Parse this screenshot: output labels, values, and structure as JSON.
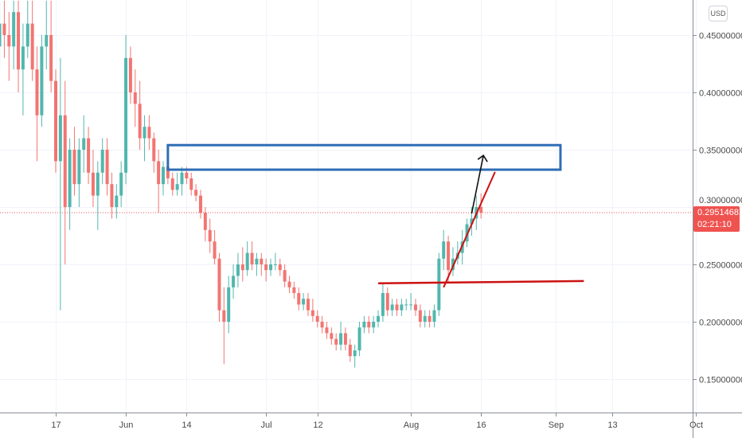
{
  "currency_button": "USD",
  "last_price": {
    "value": "0.29514681",
    "countdown": "02:21:10",
    "color": "#ef5350"
  },
  "chart_data": {
    "type": "candlestick",
    "title": "",
    "ylim": [
      0.12,
      0.48
    ],
    "y_ticks": [
      "0.15000000",
      "0.20000000",
      "0.25000000",
      "0.30000000",
      "0.35000000",
      "0.40000000",
      "0.45000000"
    ],
    "x_ticks": [
      {
        "date": "05-17",
        "label": "17"
      },
      {
        "date": "06-01",
        "label": "Jun"
      },
      {
        "date": "06-14",
        "label": "14"
      },
      {
        "date": "07-01",
        "label": "Jul"
      },
      {
        "date": "07-12",
        "label": "12"
      },
      {
        "date": "08-01",
        "label": "Aug"
      },
      {
        "date": "08-16",
        "label": "16"
      },
      {
        "date": "09-01",
        "label": "Sep"
      },
      {
        "date": "09-13",
        "label": "13"
      },
      {
        "date": "10-01",
        "label": "Oct"
      }
    ],
    "grid": true,
    "colors": {
      "up": "#26a69a",
      "down": "#ef5350",
      "zone": "#2e6db4",
      "level": "#cc1111",
      "arrow": "#111111"
    },
    "candles_start": "05-05",
    "ohlc": [
      [
        0.44,
        0.48,
        0.42,
        0.46
      ],
      [
        0.46,
        0.48,
        0.43,
        0.45
      ],
      [
        0.45,
        0.47,
        0.41,
        0.44
      ],
      [
        0.44,
        0.48,
        0.42,
        0.47
      ],
      [
        0.47,
        0.48,
        0.4,
        0.42
      ],
      [
        0.42,
        0.46,
        0.38,
        0.44
      ],
      [
        0.44,
        0.48,
        0.43,
        0.46
      ],
      [
        0.46,
        0.48,
        0.41,
        0.42
      ],
      [
        0.42,
        0.44,
        0.34,
        0.38
      ],
      [
        0.38,
        0.45,
        0.37,
        0.44
      ],
      [
        0.44,
        0.48,
        0.42,
        0.45
      ],
      [
        0.45,
        0.48,
        0.4,
        0.41
      ],
      [
        0.41,
        0.42,
        0.33,
        0.34
      ],
      [
        0.34,
        0.43,
        0.21,
        0.38
      ],
      [
        0.38,
        0.41,
        0.25,
        0.3
      ],
      [
        0.3,
        0.36,
        0.28,
        0.35
      ],
      [
        0.35,
        0.37,
        0.31,
        0.32
      ],
      [
        0.32,
        0.36,
        0.3,
        0.35
      ],
      [
        0.35,
        0.38,
        0.33,
        0.36
      ],
      [
        0.36,
        0.37,
        0.32,
        0.33
      ],
      [
        0.33,
        0.35,
        0.3,
        0.31
      ],
      [
        0.31,
        0.34,
        0.28,
        0.33
      ],
      [
        0.33,
        0.36,
        0.32,
        0.35
      ],
      [
        0.35,
        0.36,
        0.31,
        0.32
      ],
      [
        0.32,
        0.33,
        0.29,
        0.3
      ],
      [
        0.3,
        0.32,
        0.29,
        0.31
      ],
      [
        0.31,
        0.34,
        0.3,
        0.33
      ],
      [
        0.33,
        0.45,
        0.32,
        0.43
      ],
      [
        0.43,
        0.44,
        0.39,
        0.4
      ],
      [
        0.4,
        0.42,
        0.37,
        0.39
      ],
      [
        0.39,
        0.41,
        0.35,
        0.36
      ],
      [
        0.36,
        0.38,
        0.34,
        0.37
      ],
      [
        0.37,
        0.38,
        0.35,
        0.36
      ],
      [
        0.36,
        0.365,
        0.33,
        0.34
      ],
      [
        0.34,
        0.35,
        0.295,
        0.32
      ],
      [
        0.32,
        0.34,
        0.31,
        0.335
      ],
      [
        0.335,
        0.34,
        0.32,
        0.325
      ],
      [
        0.325,
        0.33,
        0.31,
        0.315
      ],
      [
        0.315,
        0.33,
        0.31,
        0.32
      ],
      [
        0.32,
        0.335,
        0.31,
        0.33
      ],
      [
        0.33,
        0.335,
        0.32,
        0.325
      ],
      [
        0.325,
        0.33,
        0.31,
        0.315
      ],
      [
        0.315,
        0.32,
        0.305,
        0.31
      ],
      [
        0.31,
        0.315,
        0.29,
        0.295
      ],
      [
        0.295,
        0.3,
        0.27,
        0.28
      ],
      [
        0.28,
        0.29,
        0.26,
        0.27
      ],
      [
        0.27,
        0.28,
        0.25,
        0.255
      ],
      [
        0.255,
        0.26,
        0.2,
        0.21
      ],
      [
        0.21,
        0.23,
        0.163,
        0.2
      ],
      [
        0.2,
        0.24,
        0.19,
        0.23
      ],
      [
        0.23,
        0.25,
        0.22,
        0.24
      ],
      [
        0.24,
        0.26,
        0.23,
        0.25
      ],
      [
        0.25,
        0.265,
        0.235,
        0.245
      ],
      [
        0.245,
        0.27,
        0.24,
        0.26
      ],
      [
        0.26,
        0.27,
        0.245,
        0.25
      ],
      [
        0.25,
        0.26,
        0.24,
        0.255
      ],
      [
        0.255,
        0.26,
        0.24,
        0.25
      ],
      [
        0.25,
        0.255,
        0.235,
        0.245
      ],
      [
        0.245,
        0.255,
        0.24,
        0.25
      ],
      [
        0.25,
        0.26,
        0.245,
        0.25
      ],
      [
        0.25,
        0.255,
        0.24,
        0.245
      ],
      [
        0.245,
        0.25,
        0.23,
        0.235
      ],
      [
        0.235,
        0.24,
        0.225,
        0.23
      ],
      [
        0.23,
        0.235,
        0.22,
        0.225
      ],
      [
        0.225,
        0.23,
        0.21,
        0.215
      ],
      [
        0.215,
        0.225,
        0.21,
        0.22
      ],
      [
        0.22,
        0.225,
        0.205,
        0.21
      ],
      [
        0.21,
        0.22,
        0.2,
        0.205
      ],
      [
        0.205,
        0.21,
        0.195,
        0.2
      ],
      [
        0.2,
        0.205,
        0.19,
        0.195
      ],
      [
        0.195,
        0.2,
        0.185,
        0.19
      ],
      [
        0.19,
        0.195,
        0.18,
        0.185
      ],
      [
        0.185,
        0.19,
        0.175,
        0.18
      ],
      [
        0.18,
        0.2,
        0.175,
        0.19
      ],
      [
        0.19,
        0.195,
        0.175,
        0.18
      ],
      [
        0.18,
        0.185,
        0.165,
        0.17
      ],
      [
        0.17,
        0.18,
        0.16,
        0.175
      ],
      [
        0.175,
        0.2,
        0.17,
        0.195
      ],
      [
        0.195,
        0.205,
        0.19,
        0.2
      ],
      [
        0.2,
        0.205,
        0.19,
        0.195
      ],
      [
        0.195,
        0.205,
        0.19,
        0.2
      ],
      [
        0.2,
        0.21,
        0.195,
        0.205
      ],
      [
        0.205,
        0.234,
        0.2,
        0.225
      ],
      [
        0.225,
        0.23,
        0.205,
        0.21
      ],
      [
        0.21,
        0.22,
        0.205,
        0.215
      ],
      [
        0.215,
        0.22,
        0.205,
        0.21
      ],
      [
        0.21,
        0.22,
        0.205,
        0.215
      ],
      [
        0.215,
        0.22,
        0.21,
        0.215
      ],
      [
        0.215,
        0.225,
        0.21,
        0.215
      ],
      [
        0.215,
        0.22,
        0.205,
        0.21
      ],
      [
        0.21,
        0.215,
        0.195,
        0.2
      ],
      [
        0.2,
        0.21,
        0.195,
        0.205
      ],
      [
        0.205,
        0.21,
        0.195,
        0.2
      ],
      [
        0.2,
        0.215,
        0.195,
        0.21
      ],
      [
        0.21,
        0.26,
        0.205,
        0.255
      ],
      [
        0.255,
        0.28,
        0.245,
        0.27
      ],
      [
        0.27,
        0.275,
        0.235,
        0.245
      ],
      [
        0.245,
        0.265,
        0.24,
        0.255
      ],
      [
        0.255,
        0.27,
        0.25,
        0.26
      ],
      [
        0.26,
        0.28,
        0.25,
        0.27
      ],
      [
        0.27,
        0.29,
        0.265,
        0.285
      ],
      [
        0.285,
        0.3,
        0.275,
        0.29
      ],
      [
        0.29,
        0.31,
        0.28,
        0.3
      ],
      [
        0.3,
        0.312,
        0.29,
        0.29514681
      ]
    ],
    "annotations": {
      "zone_rectangle": {
        "from": "06-10",
        "to": "09-02",
        "top": 0.354,
        "bottom": 0.3326
      },
      "support_line": {
        "from": "07-25",
        "to": "09-07",
        "price_start": 0.2335,
        "price_end": 0.2355
      },
      "trend_line": {
        "from": "08-08",
        "to": "08-19",
        "price_start": 0.23,
        "price_end": 0.3306
      },
      "arrow": {
        "from": "08-14",
        "to": "08-16",
        "price_start": 0.2944,
        "price_end": 0.345
      }
    }
  }
}
